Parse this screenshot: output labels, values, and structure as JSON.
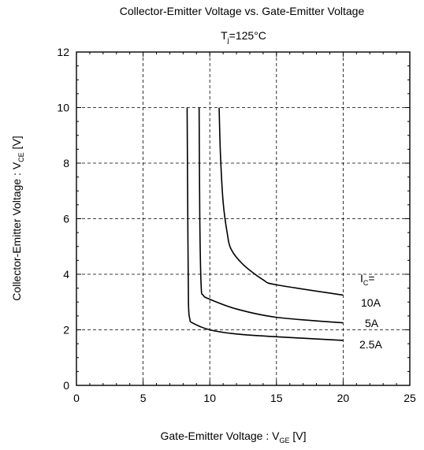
{
  "chart_data": {
    "type": "line",
    "title": "Collector-Emitter Voltage vs. Gate-Emitter Voltage",
    "subtitle": {
      "main": "T",
      "sub": "j",
      "rest": "=125°C"
    },
    "xlabel": {
      "main": "Gate-Emitter Voltage  :  V",
      "sub": "GE",
      "rest": "  [V]"
    },
    "ylabel": {
      "main": "Collector-Emitter Voltage  :  V",
      "sub": "CE",
      "rest": "  [V]"
    },
    "xlim": [
      0,
      25
    ],
    "ylim": [
      0,
      12
    ],
    "xticks": [
      0,
      5,
      10,
      15,
      20,
      25
    ],
    "yticks": [
      0,
      2,
      4,
      6,
      8,
      10,
      12
    ],
    "grid": true,
    "series": [
      {
        "name": "2.5A",
        "x": [
          8.3,
          8.35,
          8.4,
          8.5,
          8.7,
          10,
          12,
          15,
          20
        ],
        "y": [
          10,
          6,
          3,
          2.4,
          2.25,
          2.0,
          1.85,
          1.75,
          1.62
        ]
      },
      {
        "name": "5A",
        "x": [
          9.2,
          9.25,
          9.35,
          9.5,
          10,
          12,
          15,
          20
        ],
        "y": [
          10,
          6,
          3.6,
          3.25,
          3.1,
          2.75,
          2.45,
          2.25
        ]
      },
      {
        "name": "10A",
        "x": [
          10.7,
          10.8,
          11,
          11.3,
          11.6,
          12.5,
          14,
          15,
          20
        ],
        "y": [
          10,
          8.3,
          6.6,
          5.5,
          4.9,
          4.35,
          3.8,
          3.62,
          3.25
        ]
      }
    ],
    "legend_header": {
      "main": "I",
      "sub": "C",
      "rest": "="
    }
  }
}
